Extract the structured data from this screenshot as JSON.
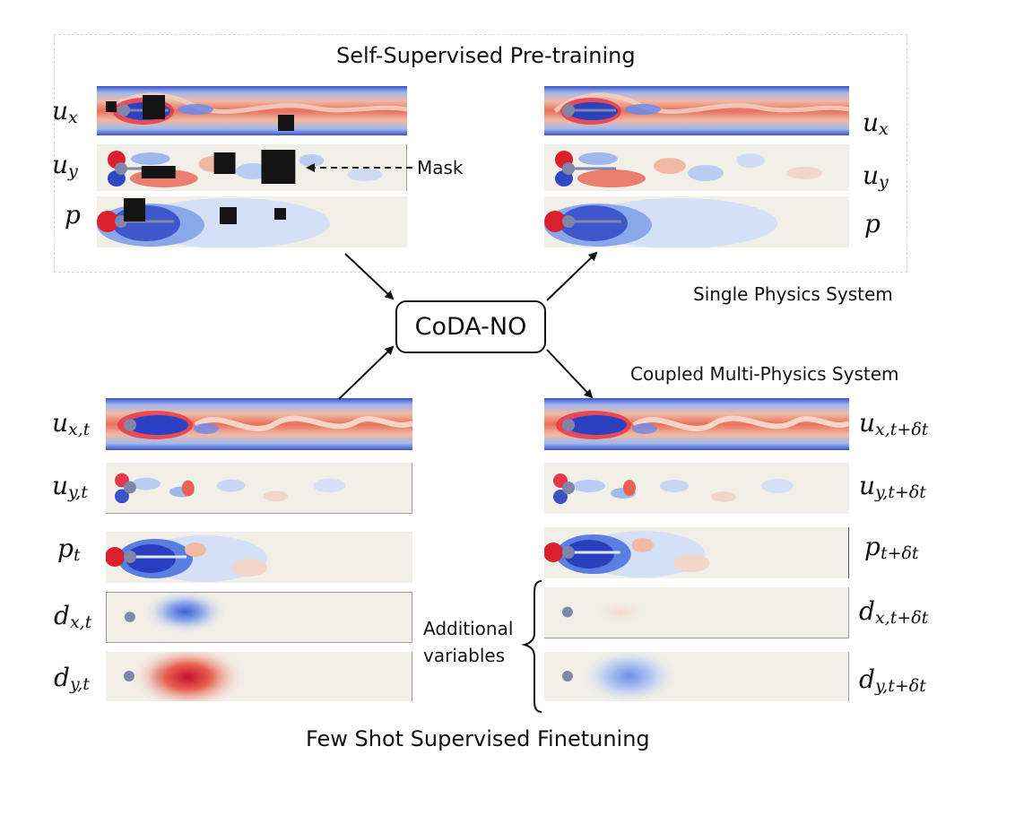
{
  "titles": {
    "pretraining": "Self-Supervised Pre-training",
    "single_physics": "Single Physics System",
    "coupled": "Coupled Multi-Physics System",
    "finetuning": "Few Shot Supervised Finetuning"
  },
  "model": {
    "label": "CoDA-NO"
  },
  "annotations": {
    "mask": "Mask",
    "additional_line1": "Additional",
    "additional_line2": "variables"
  },
  "labels": {
    "pre_left": [
      {
        "base": "u",
        "sub": "x"
      },
      {
        "base": "u",
        "sub": "y"
      },
      {
        "base": "p",
        "sub": ""
      }
    ],
    "pre_right": [
      {
        "base": "u",
        "sub": "x"
      },
      {
        "base": "u",
        "sub": "y"
      },
      {
        "base": "p",
        "sub": ""
      }
    ],
    "ft_left": [
      {
        "base": "u",
        "sub": "x,t"
      },
      {
        "base": "u",
        "sub": "y,t"
      },
      {
        "base": "p",
        "sub": "t"
      },
      {
        "base": "d",
        "sub": "x,t"
      },
      {
        "base": "d",
        "sub": "y,t"
      }
    ],
    "ft_right": [
      {
        "base": "u",
        "sub": "x,t+δt"
      },
      {
        "base": "u",
        "sub": "y,t+δt"
      },
      {
        "base": "p",
        "sub": "t+δt"
      },
      {
        "base": "d",
        "sub": "x,t+δt"
      },
      {
        "base": "d",
        "sub": "y,t+δt"
      }
    ]
  },
  "colors": {
    "deep_red": "#c8102e",
    "red": "#e8624f",
    "light_red": "#f6c3b1",
    "background": "#f2efe8",
    "light_blue": "#b9cdf2",
    "blue": "#5a7fe0",
    "deep_blue": "#2a3fc0",
    "cylinder": "#7f86a8",
    "mask": "#141414"
  }
}
